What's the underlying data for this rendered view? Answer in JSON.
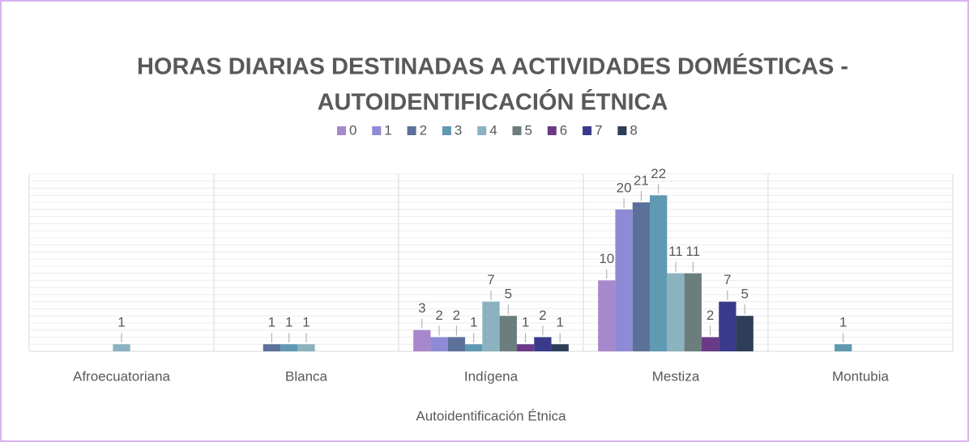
{
  "chart_data": {
    "type": "bar",
    "title": [
      "HORAS DIARIAS DESTINADAS A ACTIVIDADES DOMÉSTICAS -",
      "AUTOIDENTIFICACIÓN ÉTNICA"
    ],
    "x_label": "Autoidentificación Étnica",
    "categories": [
      "Afroecuatoriana",
      "Blanca",
      "Indígena",
      "Mestiza",
      "Montubia"
    ],
    "series": [
      {
        "name": "0",
        "color": "#a888cc",
        "values": [
          null,
          null,
          3,
          10,
          null
        ]
      },
      {
        "name": "1",
        "color": "#8d8bd6",
        "values": [
          null,
          null,
          2,
          20,
          null
        ]
      },
      {
        "name": "2",
        "color": "#5b7199",
        "values": [
          null,
          1,
          2,
          21,
          null
        ]
      },
      {
        "name": "3",
        "color": "#5f99b2",
        "values": [
          null,
          1,
          1,
          22,
          1
        ]
      },
      {
        "name": "4",
        "color": "#8ab3bf",
        "values": [
          1,
          1,
          7,
          11,
          null
        ]
      },
      {
        "name": "5",
        "color": "#6c7d7e",
        "values": [
          null,
          null,
          5,
          11,
          null
        ]
      },
      {
        "name": "6",
        "color": "#6a3a88",
        "values": [
          null,
          null,
          1,
          2,
          null
        ]
      },
      {
        "name": "7",
        "color": "#3a3a8c",
        "values": [
          null,
          null,
          2,
          7,
          null
        ]
      },
      {
        "name": "8",
        "color": "#2f3e58",
        "values": [
          null,
          null,
          1,
          5,
          null
        ]
      }
    ],
    "ylim": [
      0,
      25
    ],
    "yticks": [
      0,
      1,
      2,
      3,
      4,
      5,
      6,
      7,
      8,
      9,
      10,
      11,
      12,
      13,
      14,
      15,
      16,
      17,
      18,
      19,
      20,
      21,
      22,
      23,
      24,
      25
    ],
    "grid": true,
    "legend": "top"
  }
}
